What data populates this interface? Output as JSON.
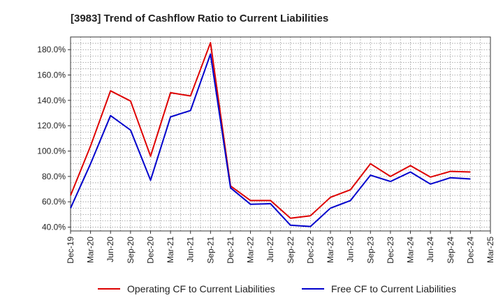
{
  "chart_data": {
    "type": "line",
    "title": "[3983]  Trend of Cashflow Ratio to Current Liabilities",
    "xlabel": "",
    "ylabel": "",
    "ylim": [
      37,
      190
    ],
    "grid": true,
    "legend_position": "bottom",
    "x_tick_labels": [
      "Dec-19",
      "Mar-20",
      "Jun-20",
      "Sep-20",
      "Dec-20",
      "Mar-21",
      "Jun-21",
      "Sep-21",
      "Dec-21",
      "Mar-22",
      "Jun-22",
      "Sep-22",
      "Dec-22",
      "Mar-23",
      "Jun-23",
      "Sep-23",
      "Dec-23",
      "Mar-24",
      "Jun-24",
      "Sep-24",
      "Dec-24",
      "Mar-25"
    ],
    "y_ticks": [
      40,
      60,
      80,
      100,
      120,
      140,
      160,
      180
    ],
    "y_tick_labels": [
      "40.0%",
      "60.0%",
      "80.0%",
      "100.0%",
      "120.0%",
      "140.0%",
      "160.0%",
      "180.0%"
    ],
    "x": [
      "Dec-19",
      "Mar-20",
      "Jun-20",
      "Sep-20",
      "Dec-20",
      "Mar-21",
      "Jun-21",
      "Sep-21",
      "Dec-21",
      "Mar-22",
      "Jun-22",
      "Sep-22",
      "Dec-22",
      "Mar-23",
      "Jun-23",
      "Sep-23",
      "Dec-23",
      "Mar-24",
      "Jun-24",
      "Sep-24",
      "Dec-24"
    ],
    "series": [
      {
        "name": "Operating CF to Current Liabilities",
        "color": "#dd0000",
        "values": [
          65.0,
          104.0,
          147.5,
          139.5,
          96.0,
          146.0,
          143.5,
          185.5,
          72.5,
          61.0,
          61.0,
          47.0,
          49.0,
          63.5,
          69.5,
          90.0,
          80.0,
          88.5,
          79.5,
          84.0,
          83.5
        ]
      },
      {
        "name": "Free CF to Current Liabilities",
        "color": "#0000cc",
        "values": [
          55.0,
          90.0,
          128.0,
          116.5,
          77.0,
          127.0,
          132.0,
          176.5,
          71.0,
          58.0,
          58.5,
          41.5,
          40.5,
          55.0,
          61.0,
          81.0,
          76.0,
          83.5,
          74.0,
          79.0,
          78.0
        ]
      }
    ]
  }
}
